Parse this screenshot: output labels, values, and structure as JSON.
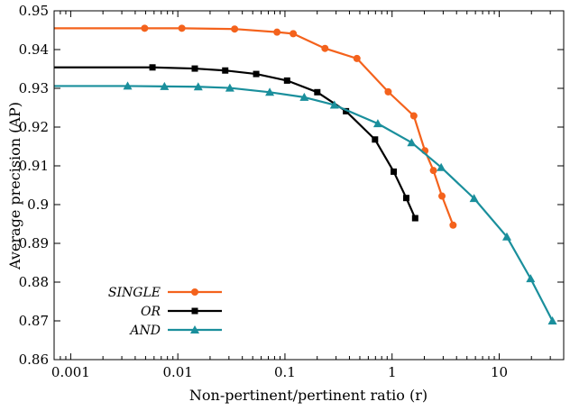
{
  "chart_data": {
    "type": "line",
    "xlabel": "Non-pertinent/pertinent ratio (r)",
    "ylabel": "Average precision (AP)",
    "xscale": "log",
    "xlim": [
      0.0007,
      40
    ],
    "ylim": [
      0.86,
      0.95
    ],
    "x_ticks": [
      0.001,
      0.01,
      0.1,
      1,
      10
    ],
    "x_tick_labels": [
      "0.001",
      "0.01",
      "0.1",
      "1",
      "10"
    ],
    "y_ticks": [
      0.86,
      0.87,
      0.88,
      0.89,
      0.9,
      0.91,
      0.92,
      0.93,
      0.94,
      0.95
    ],
    "y_tick_labels": [
      "0.86",
      "0.87",
      "0.88",
      "0.89",
      "0.9",
      "0.91",
      "0.92",
      "0.93",
      "0.94",
      "0.95"
    ],
    "grid": false,
    "legend_position": "bottom-left",
    "series": [
      {
        "name": "SINGLE",
        "color": "#f4621c",
        "marker": "circle",
        "x": [
          0.0005,
          0.0049,
          0.0109,
          0.0339,
          0.0843,
          0.1194,
          0.2364,
          0.4698,
          0.9204,
          1.5961,
          2.0256,
          2.4327,
          2.9215,
          3.7122
        ],
        "y": [
          0.9455,
          0.9455,
          0.9455,
          0.9453,
          0.9445,
          0.9441,
          0.9403,
          0.9377,
          0.9291,
          0.9229,
          0.9139,
          0.9088,
          0.9022,
          0.8947
        ]
      },
      {
        "name": "OR",
        "color": "#000000",
        "marker": "square",
        "x": [
          0.0005,
          0.0058,
          0.0144,
          0.0277,
          0.0539,
          0.1047,
          0.2004,
          0.3714,
          0.6931,
          1.0361,
          1.3571,
          1.6426
        ],
        "y": [
          0.9354,
          0.9354,
          0.9351,
          0.9346,
          0.9337,
          0.932,
          0.929,
          0.9241,
          0.9168,
          0.9085,
          0.9017,
          0.8965
        ]
      },
      {
        "name": "AND",
        "color": "#1a8f9c",
        "marker": "triangle",
        "x": [
          0.0005,
          0.0034,
          0.0075,
          0.0155,
          0.0306,
          0.0721,
          0.1514,
          0.2894,
          0.7364,
          1.5222,
          2.8732,
          5.8271,
          11.7863,
          19.6433,
          31.4081
        ],
        "y": [
          0.9306,
          0.9306,
          0.9305,
          0.9304,
          0.9301,
          0.929,
          0.9277,
          0.9257,
          0.9209,
          0.916,
          0.9096,
          0.9016,
          0.8917,
          0.8809,
          0.87
        ]
      }
    ]
  }
}
